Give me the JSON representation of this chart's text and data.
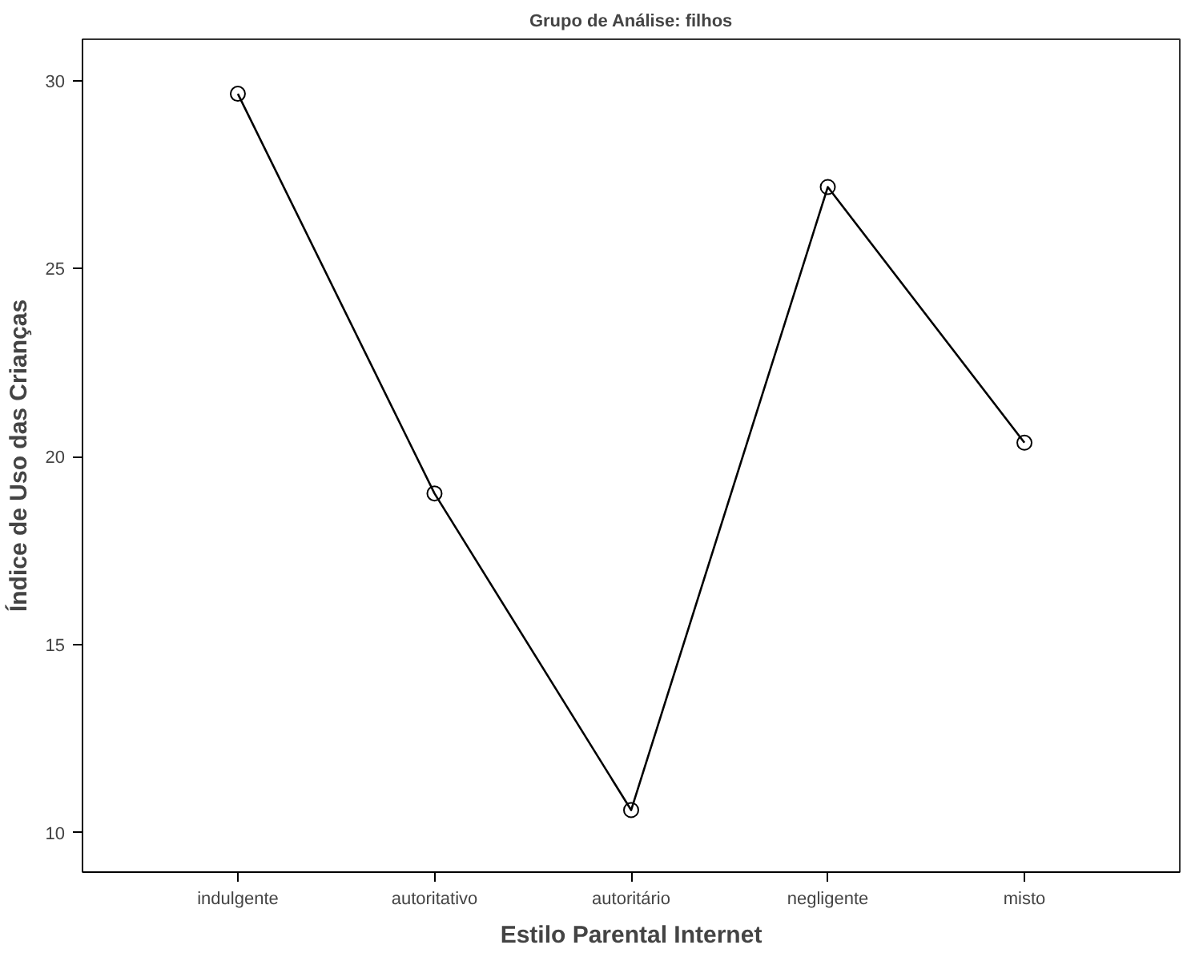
{
  "chart_data": {
    "type": "line",
    "title": "Grupo de Análise: filhos",
    "xlabel": "Estilo Parental Internet",
    "ylabel": "Índice de Uso das Crianças",
    "categories": [
      "indulgente",
      "autoritativo",
      "autoritário",
      "negligente",
      "misto"
    ],
    "series": [
      {
        "color": "#000000",
        "values": [
          29.65,
          19.02,
          10.6,
          27.17,
          20.37
        ]
      }
    ],
    "ylim": [
      8.95,
      31.1
    ],
    "yticks": [
      10,
      15,
      20,
      25,
      30
    ],
    "grid": false,
    "marker": "circle",
    "line_style": "solid"
  }
}
